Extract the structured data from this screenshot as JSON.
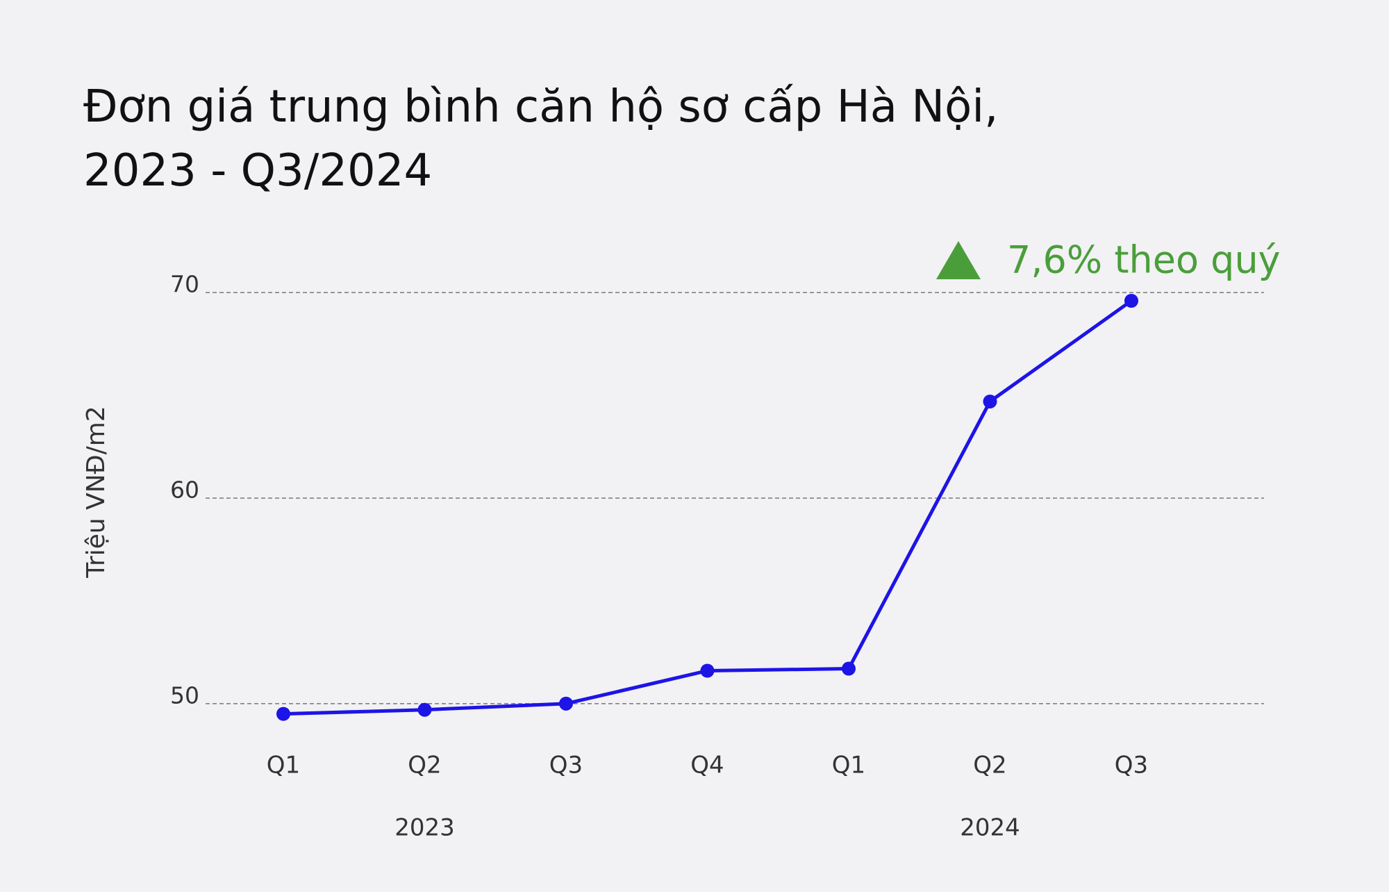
{
  "chart_data": {
    "type": "line",
    "title": "Đơn giá trung bình căn hộ sơ cấp Hà Nội,\n2023 - Q3/2024",
    "y_axis_label": "Triệu VNĐ/m2",
    "categories": [
      "Q1",
      "Q2",
      "Q3",
      "Q4",
      "Q1",
      "Q2",
      "Q3"
    ],
    "x_groups": [
      {
        "label": "2023",
        "count": 4
      },
      {
        "label": "2024",
        "count": 3
      }
    ],
    "series": [
      {
        "name": "Đơn giá trung bình",
        "color": "#1d14e6",
        "values": [
          49.5,
          49.7,
          50.0,
          51.6,
          51.7,
          64.7,
          69.6
        ]
      }
    ],
    "ylim": [
      48,
      72
    ],
    "yticks": [
      50,
      60,
      70
    ],
    "grid": true,
    "annotation": {
      "text": "7,6% theo quý",
      "color": "#4a9e3a"
    }
  }
}
